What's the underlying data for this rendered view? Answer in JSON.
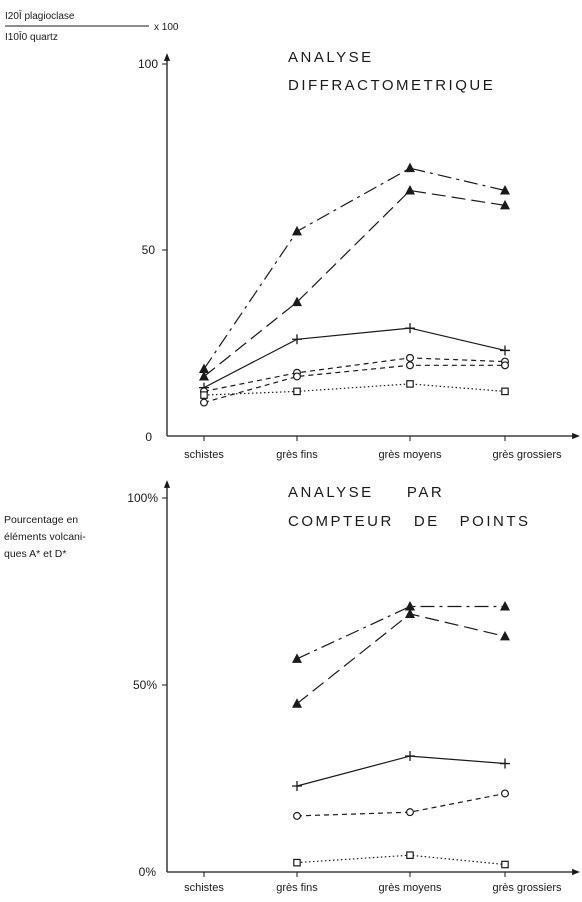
{
  "chart_data": [
    {
      "type": "line",
      "title": [
        "ANALYSE",
        "DIFFRACTOMETRIQUE"
      ],
      "ylabel": {
        "numerator": "I20Ī plagioclase",
        "denominator": "I10Ī0 quartz",
        "factor": "x 100"
      },
      "yticks": [
        "0",
        "50",
        "100"
      ],
      "ylim": [
        0,
        100
      ],
      "categories": [
        "schistes",
        "grès fins",
        "grès moyens",
        "grès grossiers"
      ],
      "series": [
        {
          "marker": "triangle",
          "line": "dashdot",
          "values": [
            18,
            55,
            72,
            66
          ]
        },
        {
          "marker": "triangle",
          "line": "longdash",
          "values": [
            16,
            36,
            66,
            62
          ]
        },
        {
          "marker": "plus",
          "line": "solid",
          "values": [
            13,
            26,
            29,
            23
          ]
        },
        {
          "marker": "circle",
          "line": "dashed",
          "values": [
            12,
            17,
            21,
            20
          ]
        },
        {
          "marker": "circle",
          "line": "dashed",
          "values": [
            9,
            16,
            19,
            19
          ]
        },
        {
          "marker": "square",
          "line": "dotted",
          "values": [
            11,
            12,
            14,
            12
          ]
        }
      ]
    },
    {
      "type": "line",
      "title": [
        "ANALYSE     PAR",
        "COMPTEUR   DE   POINTS"
      ],
      "ylabel": [
        "Pourcentage en",
        "éléments volcani-",
        "ques A* et D*"
      ],
      "yticks": [
        "0%",
        "50%",
        "100%"
      ],
      "ylim": [
        0,
        100
      ],
      "categories": [
        "schistes",
        "grès fins",
        "grès moyens",
        "grès grossiers"
      ],
      "series": [
        {
          "marker": "triangle",
          "line": "dashdot",
          "values": [
            null,
            57,
            71,
            71
          ]
        },
        {
          "marker": "triangle",
          "line": "longdash",
          "values": [
            null,
            45,
            69,
            63
          ]
        },
        {
          "marker": "plus",
          "line": "solid",
          "values": [
            null,
            23,
            31,
            29
          ]
        },
        {
          "marker": "circle",
          "line": "dashed",
          "values": [
            null,
            15,
            16,
            21
          ]
        },
        {
          "marker": "square",
          "line": "dotted",
          "values": [
            null,
            2.5,
            4.5,
            2
          ]
        }
      ]
    }
  ]
}
